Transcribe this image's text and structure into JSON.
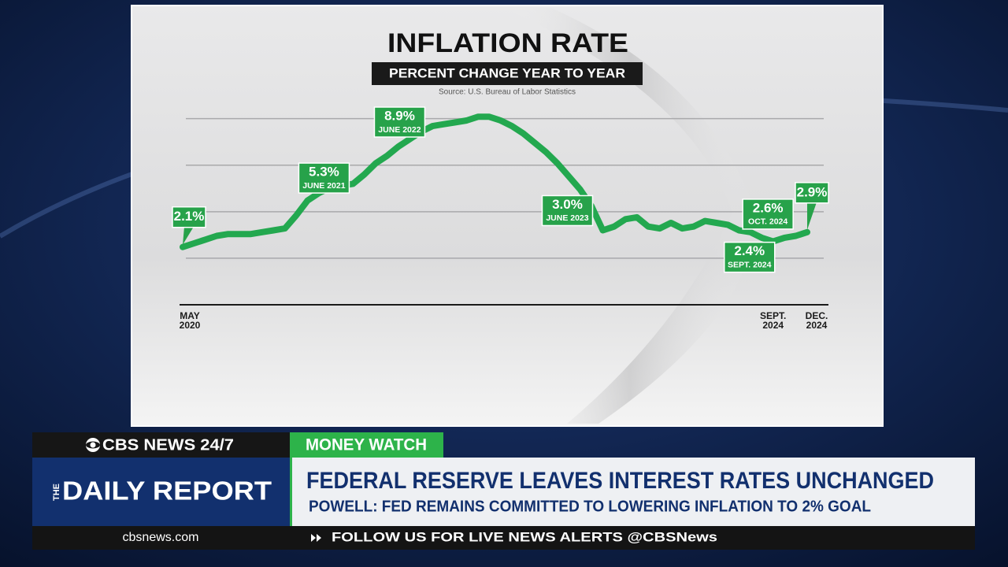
{
  "chart_data": {
    "type": "line",
    "title": "INFLATION RATE",
    "subtitle": "PERCENT CHANGE YEAR TO YEAR",
    "source": "Source: U.S. Bureau of Labor Statistics",
    "categories": [
      "MAY 2020",
      null,
      null,
      null,
      null,
      null,
      null,
      null,
      null,
      null,
      null,
      null,
      null,
      null,
      null,
      null,
      null,
      null,
      null,
      null,
      null,
      null,
      null,
      null,
      null,
      null,
      null,
      null,
      null,
      null,
      null,
      null,
      null,
      null,
      null,
      null,
      null,
      null,
      null,
      null,
      null,
      null,
      null,
      null,
      null,
      null,
      null,
      null,
      null,
      null,
      null,
      null,
      "SEPT. 2024",
      null,
      null,
      "DEC. 2024"
    ],
    "values": [
      2.1,
      2.3,
      2.5,
      2.7,
      2.8,
      2.8,
      2.8,
      2.9,
      3.0,
      3.1,
      3.8,
      4.6,
      5.0,
      5.3,
      5.4,
      5.5,
      6.0,
      6.6,
      7.0,
      7.5,
      7.9,
      8.3,
      8.6,
      8.7,
      8.8,
      8.9,
      9.1,
      9.1,
      8.9,
      8.6,
      8.2,
      7.7,
      7.2,
      6.6,
      5.9,
      5.2,
      4.3,
      3.0,
      3.2,
      3.6,
      3.7,
      3.2,
      3.1,
      3.4,
      3.1,
      3.2,
      3.5,
      3.4,
      3.3,
      3.0,
      2.9,
      2.6,
      2.4,
      2.6,
      2.7,
      2.9
    ],
    "value_labels": [
      "2.1%",
      null,
      null,
      null,
      null,
      null,
      null,
      null,
      null,
      null,
      null,
      null,
      null,
      "5.3%",
      null,
      null,
      null,
      null,
      null,
      null,
      null,
      null,
      null,
      null,
      null,
      "8.9%",
      null,
      null,
      null,
      null,
      null,
      null,
      null,
      null,
      null,
      null,
      null,
      "3.0%",
      null,
      null,
      null,
      null,
      null,
      null,
      null,
      null,
      null,
      null,
      null,
      null,
      null,
      null,
      "2.4%",
      "2.6%",
      null,
      "2.9%"
    ],
    "label_dates": [
      null,
      null,
      null,
      null,
      null,
      null,
      null,
      null,
      null,
      null,
      null,
      null,
      null,
      "JUNE 2021",
      null,
      null,
      null,
      null,
      null,
      null,
      null,
      null,
      null,
      null,
      null,
      "JUNE 2022",
      null,
      null,
      null,
      null,
      null,
      null,
      null,
      null,
      null,
      null,
      null,
      "JUNE 2023",
      null,
      null,
      null,
      null,
      null,
      null,
      null,
      null,
      null,
      null,
      null,
      null,
      null,
      null,
      "SEPT. 2024",
      "OCT. 2024",
      null,
      null
    ],
    "color": "#23a84f",
    "ylim": [
      -1,
      10
    ],
    "yticks": [
      1.5,
      4,
      6.5,
      9
    ],
    "grid": true
  },
  "lower_third": {
    "network": "CBS NEWS 24/7",
    "show_prefix": "THE",
    "show": "DAILY REPORT",
    "segment": "MONEY WATCH",
    "headline": "FEDERAL RESERVE LEAVES INTEREST RATES UNCHANGED",
    "subhead": "POWELL: FED REMAINS COMMITTED TO LOWERING INFLATION TO 2% GOAL",
    "website": "cbsnews.com",
    "ticker": "FOLLOW US FOR LIVE NEWS ALERTS @CBSNews"
  }
}
